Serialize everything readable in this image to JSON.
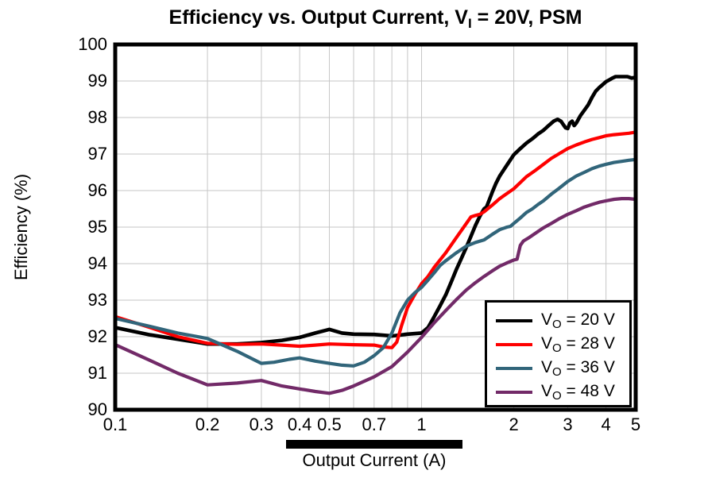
{
  "title": {
    "pre": "Efficiency vs. Output Current, V",
    "sub": "I",
    "post": " = 20V, PSM"
  },
  "y_axis": {
    "label": "Efficiency (%)",
    "ticks": [
      "90",
      "91",
      "92",
      "93",
      "94",
      "95",
      "96",
      "97",
      "98",
      "99",
      "100"
    ],
    "grid_values": [
      91,
      92,
      93,
      94,
      95,
      96,
      97,
      98,
      99
    ]
  },
  "x_axis": {
    "label": "Output Current (A)",
    "scale": "log",
    "ticks": [
      {
        "value": 0.1,
        "label": "0.1"
      },
      {
        "value": 0.2,
        "label": "0.2"
      },
      {
        "value": 0.3,
        "label": "0.3"
      },
      {
        "value": 0.4,
        "label": "0.4"
      },
      {
        "value": 0.5,
        "label": "0.5"
      },
      {
        "value": 0.7,
        "label": "0.7"
      },
      {
        "value": 1,
        "label": "1"
      },
      {
        "value": 2,
        "label": "2"
      },
      {
        "value": 3,
        "label": "3"
      },
      {
        "value": 4,
        "label": "4"
      },
      {
        "value": 5,
        "label": "5"
      }
    ],
    "grid_values": [
      0.2,
      0.3,
      0.4,
      0.5,
      0.6,
      0.7,
      0.8,
      0.9,
      1,
      2,
      3,
      4
    ]
  },
  "legend": {
    "items": [
      {
        "pre": "V",
        "sub": "O",
        "post": " = 20 V",
        "color": "#000000"
      },
      {
        "pre": "V",
        "sub": "O",
        "post": " = 28 V",
        "color": "#fe0000"
      },
      {
        "pre": "V",
        "sub": "O",
        "post": " = 36 V",
        "color": "#31657a"
      },
      {
        "pre": "V",
        "sub": "O",
        "post": " = 48 V",
        "color": "#722a68"
      }
    ]
  },
  "colors": {
    "grid": "#c6c6c6",
    "frame": "#000000",
    "background": "#ffffff"
  },
  "chart_data": {
    "type": "line",
    "title": "Efficiency vs. Output Current, VI = 20V, PSM",
    "xlabel": "Output Current (A)",
    "ylabel": "Efficiency (%)",
    "x_scale": "log",
    "xlim": [
      0.1,
      5
    ],
    "ylim": [
      90,
      100
    ],
    "grid": true,
    "legend_position": "lower right",
    "series": [
      {
        "name": "VO = 20 V",
        "color": "#000000",
        "width": 4.6,
        "points": [
          [
            0.1,
            92.25
          ],
          [
            0.13,
            92.05
          ],
          [
            0.16,
            91.93
          ],
          [
            0.2,
            91.8
          ],
          [
            0.25,
            91.8
          ],
          [
            0.3,
            91.84
          ],
          [
            0.35,
            91.9
          ],
          [
            0.4,
            91.98
          ],
          [
            0.45,
            92.1
          ],
          [
            0.5,
            92.2
          ],
          [
            0.55,
            92.1
          ],
          [
            0.6,
            92.07
          ],
          [
            0.7,
            92.06
          ],
          [
            0.8,
            92.02
          ],
          [
            0.9,
            92.07
          ],
          [
            1.0,
            92.1
          ],
          [
            1.05,
            92.25
          ],
          [
            1.1,
            92.55
          ],
          [
            1.15,
            92.85
          ],
          [
            1.2,
            93.15
          ],
          [
            1.25,
            93.5
          ],
          [
            1.3,
            93.85
          ],
          [
            1.35,
            94.15
          ],
          [
            1.4,
            94.45
          ],
          [
            1.45,
            94.75
          ],
          [
            1.5,
            95.05
          ],
          [
            1.55,
            95.3
          ],
          [
            1.6,
            95.5
          ],
          [
            1.63,
            95.55
          ],
          [
            1.7,
            95.95
          ],
          [
            1.75,
            96.2
          ],
          [
            1.8,
            96.4
          ],
          [
            1.9,
            96.7
          ],
          [
            2.0,
            96.98
          ],
          [
            2.1,
            97.15
          ],
          [
            2.2,
            97.3
          ],
          [
            2.3,
            97.42
          ],
          [
            2.4,
            97.55
          ],
          [
            2.5,
            97.65
          ],
          [
            2.6,
            97.78
          ],
          [
            2.7,
            97.9
          ],
          [
            2.78,
            97.95
          ],
          [
            2.85,
            97.9
          ],
          [
            2.95,
            97.72
          ],
          [
            3.0,
            97.7
          ],
          [
            3.05,
            97.85
          ],
          [
            3.1,
            97.9
          ],
          [
            3.15,
            97.78
          ],
          [
            3.2,
            97.85
          ],
          [
            3.3,
            98.05
          ],
          [
            3.4,
            98.2
          ],
          [
            3.5,
            98.35
          ],
          [
            3.6,
            98.55
          ],
          [
            3.7,
            98.72
          ],
          [
            3.8,
            98.82
          ],
          [
            3.9,
            98.9
          ],
          [
            4.0,
            98.98
          ],
          [
            4.1,
            99.03
          ],
          [
            4.2,
            99.08
          ],
          [
            4.3,
            99.12
          ],
          [
            4.5,
            99.12
          ],
          [
            4.7,
            99.12
          ],
          [
            4.85,
            99.08
          ],
          [
            5.0,
            99.1
          ]
        ]
      },
      {
        "name": "VO = 28 V",
        "color": "#fe0000",
        "width": 4.2,
        "points": [
          [
            0.1,
            92.55
          ],
          [
            0.13,
            92.25
          ],
          [
            0.16,
            92.0
          ],
          [
            0.2,
            91.82
          ],
          [
            0.25,
            91.79
          ],
          [
            0.3,
            91.8
          ],
          [
            0.35,
            91.77
          ],
          [
            0.4,
            91.74
          ],
          [
            0.45,
            91.77
          ],
          [
            0.5,
            91.8
          ],
          [
            0.55,
            91.79
          ],
          [
            0.6,
            91.78
          ],
          [
            0.7,
            91.77
          ],
          [
            0.75,
            91.72
          ],
          [
            0.8,
            91.7
          ],
          [
            0.83,
            91.85
          ],
          [
            0.86,
            92.3
          ],
          [
            0.9,
            92.8
          ],
          [
            0.95,
            93.15
          ],
          [
            1.0,
            93.45
          ],
          [
            1.05,
            93.65
          ],
          [
            1.1,
            93.9
          ],
          [
            1.2,
            94.3
          ],
          [
            1.3,
            94.72
          ],
          [
            1.4,
            95.1
          ],
          [
            1.45,
            95.28
          ],
          [
            1.5,
            95.32
          ],
          [
            1.55,
            95.35
          ],
          [
            1.6,
            95.42
          ],
          [
            1.7,
            95.6
          ],
          [
            1.8,
            95.78
          ],
          [
            1.9,
            95.92
          ],
          [
            2.0,
            96.05
          ],
          [
            2.1,
            96.22
          ],
          [
            2.2,
            96.38
          ],
          [
            2.35,
            96.55
          ],
          [
            2.5,
            96.72
          ],
          [
            2.65,
            96.88
          ],
          [
            2.8,
            97.0
          ],
          [
            3.0,
            97.15
          ],
          [
            3.2,
            97.25
          ],
          [
            3.4,
            97.33
          ],
          [
            3.6,
            97.4
          ],
          [
            3.8,
            97.45
          ],
          [
            4.0,
            97.5
          ],
          [
            4.25,
            97.53
          ],
          [
            4.5,
            97.55
          ],
          [
            4.75,
            97.57
          ],
          [
            5.0,
            97.6
          ]
        ]
      },
      {
        "name": "VO = 36 V",
        "color": "#31657a",
        "width": 4.2,
        "points": [
          [
            0.1,
            92.5
          ],
          [
            0.13,
            92.28
          ],
          [
            0.16,
            92.1
          ],
          [
            0.2,
            91.95
          ],
          [
            0.25,
            91.6
          ],
          [
            0.3,
            91.27
          ],
          [
            0.33,
            91.3
          ],
          [
            0.37,
            91.38
          ],
          [
            0.4,
            91.42
          ],
          [
            0.45,
            91.33
          ],
          [
            0.5,
            91.27
          ],
          [
            0.55,
            91.22
          ],
          [
            0.6,
            91.2
          ],
          [
            0.65,
            91.3
          ],
          [
            0.7,
            91.48
          ],
          [
            0.75,
            91.7
          ],
          [
            0.8,
            92.1
          ],
          [
            0.85,
            92.65
          ],
          [
            0.9,
            93.0
          ],
          [
            0.95,
            93.2
          ],
          [
            1.0,
            93.35
          ],
          [
            1.05,
            93.55
          ],
          [
            1.1,
            93.75
          ],
          [
            1.15,
            93.95
          ],
          [
            1.2,
            94.08
          ],
          [
            1.3,
            94.3
          ],
          [
            1.4,
            94.48
          ],
          [
            1.5,
            94.58
          ],
          [
            1.6,
            94.65
          ],
          [
            1.7,
            94.8
          ],
          [
            1.8,
            94.93
          ],
          [
            1.9,
            95.0
          ],
          [
            1.95,
            95.02
          ],
          [
            2.0,
            95.1
          ],
          [
            2.1,
            95.25
          ],
          [
            2.2,
            95.4
          ],
          [
            2.3,
            95.5
          ],
          [
            2.4,
            95.62
          ],
          [
            2.5,
            95.72
          ],
          [
            2.65,
            95.9
          ],
          [
            2.8,
            96.05
          ],
          [
            3.0,
            96.25
          ],
          [
            3.2,
            96.4
          ],
          [
            3.4,
            96.5
          ],
          [
            3.6,
            96.6
          ],
          [
            3.8,
            96.67
          ],
          [
            4.0,
            96.72
          ],
          [
            4.25,
            96.77
          ],
          [
            4.5,
            96.8
          ],
          [
            4.75,
            96.83
          ],
          [
            5.0,
            96.85
          ]
        ]
      },
      {
        "name": "VO = 48 V",
        "color": "#722a68",
        "width": 4.2,
        "points": [
          [
            0.1,
            91.78
          ],
          [
            0.13,
            91.35
          ],
          [
            0.16,
            91.0
          ],
          [
            0.2,
            90.68
          ],
          [
            0.25,
            90.73
          ],
          [
            0.3,
            90.8
          ],
          [
            0.35,
            90.65
          ],
          [
            0.4,
            90.57
          ],
          [
            0.45,
            90.5
          ],
          [
            0.5,
            90.45
          ],
          [
            0.55,
            90.53
          ],
          [
            0.6,
            90.65
          ],
          [
            0.7,
            90.9
          ],
          [
            0.8,
            91.18
          ],
          [
            0.9,
            91.58
          ],
          [
            1.0,
            91.98
          ],
          [
            1.1,
            92.38
          ],
          [
            1.2,
            92.72
          ],
          [
            1.3,
            93.02
          ],
          [
            1.4,
            93.28
          ],
          [
            1.5,
            93.48
          ],
          [
            1.6,
            93.65
          ],
          [
            1.7,
            93.8
          ],
          [
            1.8,
            93.93
          ],
          [
            1.9,
            94.02
          ],
          [
            2.0,
            94.1
          ],
          [
            2.05,
            94.12
          ],
          [
            2.1,
            94.5
          ],
          [
            2.15,
            94.62
          ],
          [
            2.25,
            94.72
          ],
          [
            2.4,
            94.88
          ],
          [
            2.5,
            94.98
          ],
          [
            2.65,
            95.1
          ],
          [
            2.8,
            95.22
          ],
          [
            3.0,
            95.35
          ],
          [
            3.2,
            95.45
          ],
          [
            3.4,
            95.55
          ],
          [
            3.6,
            95.62
          ],
          [
            3.8,
            95.68
          ],
          [
            4.0,
            95.72
          ],
          [
            4.25,
            95.76
          ],
          [
            4.5,
            95.78
          ],
          [
            4.75,
            95.78
          ],
          [
            5.0,
            95.76
          ]
        ]
      }
    ]
  }
}
